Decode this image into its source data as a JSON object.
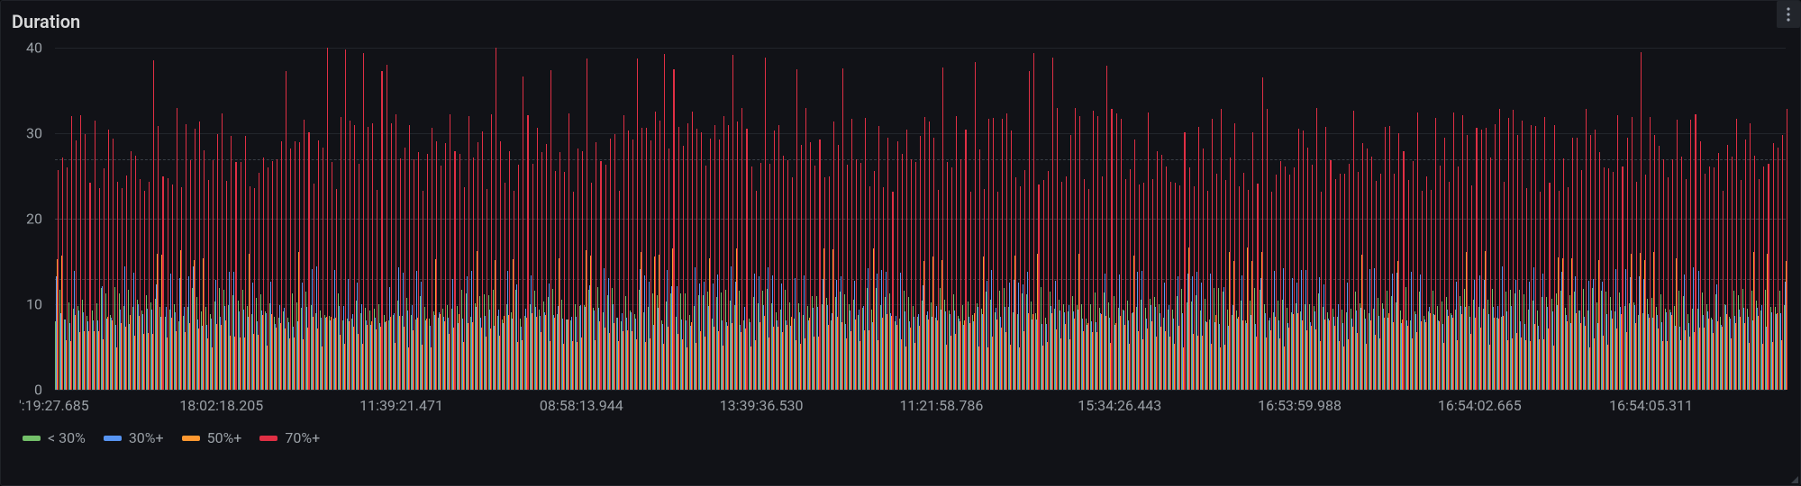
{
  "panel": {
    "title": "Duration",
    "background": "#111217",
    "border": "#1f2228"
  },
  "chart": {
    "type": "bar",
    "ylim": [
      0,
      40
    ],
    "yticks": [
      0,
      10,
      20,
      30,
      40
    ],
    "ytick_fontsize": 16,
    "grid_color": "#22252b",
    "dashed_grid_color": "#3a3f47",
    "dashed_levels": [
      13,
      20,
      27
    ],
    "bar_count": 380,
    "bars_per_group": 4,
    "xaxis_labels": [
      "':19:27.685",
      "18:02:18.205",
      "11:39:21.471",
      "08:58:13.944",
      "13:39:36.530",
      "11:21:58.786",
      "15:34:26.443",
      "16:53:59.988",
      "16:54:02.665",
      "16:54:05.311"
    ],
    "xaxis_positions_pct": [
      2.5,
      11.7,
      22.1,
      32.5,
      42.9,
      53.3,
      63.6,
      74.0,
      84.4,
      94.3
    ],
    "xtick_fontsize": 16
  },
  "series": [
    {
      "key": "lt30",
      "label": "< 30%",
      "color": "#73bf69",
      "base_height": 10,
      "jitter": 4
    },
    {
      "key": "gte30",
      "label": "30%+",
      "color": "#5794f2",
      "base_height": 12,
      "jitter": 7
    },
    {
      "key": "gte50",
      "label": "50%+",
      "color": "#ff9830",
      "base_height": 15,
      "jitter": 9
    },
    {
      "key": "gte70",
      "label": "70%+",
      "color": "#e02f44",
      "base_height": 28,
      "jitter": 10
    }
  ],
  "legend": {
    "fontsize": 16,
    "label_color": "#9aa0a6"
  }
}
